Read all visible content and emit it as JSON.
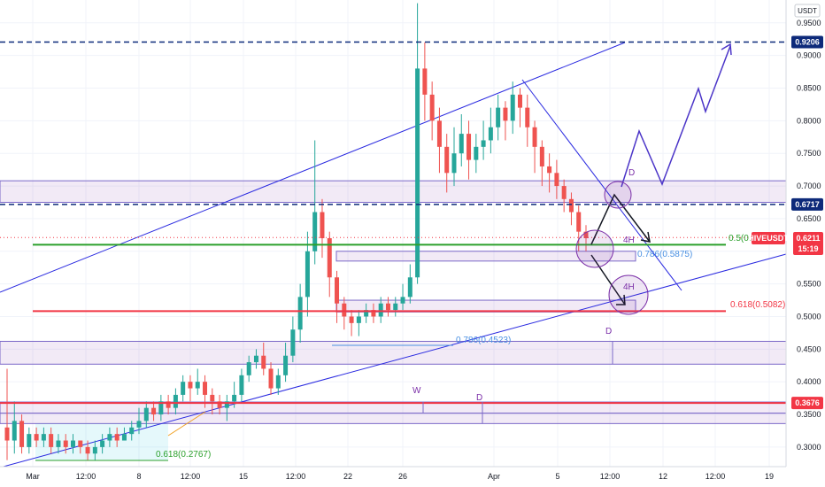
{
  "chart_data": {
    "type": "candlestick",
    "symbol": "HIVEUSDT",
    "currency_label": "USDT",
    "ylim": [
      0.27,
      0.985
    ],
    "yticks": [
      0.3,
      0.35,
      0.4,
      0.45,
      0.5,
      0.55,
      0.6,
      0.65,
      0.7,
      0.75,
      0.8,
      0.85,
      0.9,
      0.95
    ],
    "ytick_labels": [
      "0.3000",
      "0.3500",
      "0.4000",
      "0.4500",
      "0.5000",
      "0.5500",
      "0.6000",
      "0.6500",
      "0.7000",
      "0.7500",
      "0.8000",
      "0.8500",
      "0.9000",
      "0.9500"
    ],
    "x_labels": [
      "Mar",
      "12:00",
      "8",
      "12:00",
      "15",
      "12:00",
      "22",
      "26",
      "Apr",
      "5",
      "12:00",
      "12",
      "12:00",
      "19"
    ],
    "current_price": {
      "value": 0.6211,
      "label": "0.6211",
      "countdown": "15:19"
    },
    "price_tags": [
      {
        "value": 0.9206,
        "label": "0.9206",
        "color": "#0d2a7a"
      },
      {
        "value": 0.6717,
        "label": "0.6717",
        "color": "#0d2a7a"
      },
      {
        "value": 0.3676,
        "label": "0.3676",
        "color": "#f23645"
      }
    ],
    "horizontal_lines": [
      {
        "value": 0.9206,
        "style": "dashed",
        "color": "#0d2a7a"
      },
      {
        "value": 0.6717,
        "style": "dashed",
        "color": "#0d2a7a"
      },
      {
        "value": 0.6101,
        "style": "solid",
        "color": "#2ca02c"
      },
      {
        "value": 0.5082,
        "style": "solid",
        "color": "#f23645"
      },
      {
        "value": 0.3676,
        "style": "solid",
        "color": "#f23645"
      }
    ],
    "annotations": {
      "fib_50": "0.5(0.",
      "fib_618_top": "0.618(0.5082)",
      "fib_786_top": "0.786(0.5875)",
      "fib_786_mid": "0.786(0.4523)",
      "fib_618_bottom": "0.618(0.2767)",
      "marker_4h_1": "4H",
      "marker_4h_2": "4H",
      "marker_d_1": "D",
      "marker_d_2": "D",
      "marker_d_3": "D",
      "marker_w": "W"
    },
    "candles": [
      [
        0.33,
        0.31,
        0.42,
        0.28
      ],
      [
        0.31,
        0.34,
        0.37,
        0.29
      ],
      [
        0.34,
        0.3,
        0.35,
        0.29
      ],
      [
        0.3,
        0.32,
        0.33,
        0.29
      ],
      [
        0.32,
        0.31,
        0.33,
        0.3
      ],
      [
        0.31,
        0.32,
        0.33,
        0.3
      ],
      [
        0.32,
        0.3,
        0.33,
        0.29
      ],
      [
        0.3,
        0.31,
        0.32,
        0.29
      ],
      [
        0.31,
        0.3,
        0.32,
        0.29
      ],
      [
        0.3,
        0.31,
        0.32,
        0.29
      ],
      [
        0.31,
        0.3,
        0.31,
        0.29
      ],
      [
        0.3,
        0.29,
        0.31,
        0.28
      ],
      [
        0.29,
        0.3,
        0.31,
        0.28
      ],
      [
        0.3,
        0.31,
        0.32,
        0.29
      ],
      [
        0.31,
        0.32,
        0.33,
        0.3
      ],
      [
        0.32,
        0.31,
        0.33,
        0.3
      ],
      [
        0.31,
        0.32,
        0.33,
        0.31
      ],
      [
        0.32,
        0.33,
        0.34,
        0.31
      ],
      [
        0.33,
        0.34,
        0.36,
        0.32
      ],
      [
        0.34,
        0.36,
        0.37,
        0.33
      ],
      [
        0.36,
        0.35,
        0.37,
        0.34
      ],
      [
        0.35,
        0.37,
        0.38,
        0.34
      ],
      [
        0.37,
        0.36,
        0.38,
        0.35
      ],
      [
        0.36,
        0.38,
        0.39,
        0.35
      ],
      [
        0.38,
        0.4,
        0.41,
        0.37
      ],
      [
        0.4,
        0.39,
        0.41,
        0.37
      ],
      [
        0.39,
        0.4,
        0.42,
        0.38
      ],
      [
        0.4,
        0.38,
        0.41,
        0.36
      ],
      [
        0.38,
        0.37,
        0.39,
        0.35
      ],
      [
        0.37,
        0.36,
        0.38,
        0.35
      ],
      [
        0.36,
        0.37,
        0.38,
        0.34
      ],
      [
        0.37,
        0.38,
        0.4,
        0.36
      ],
      [
        0.38,
        0.41,
        0.42,
        0.37
      ],
      [
        0.41,
        0.43,
        0.44,
        0.4
      ],
      [
        0.43,
        0.44,
        0.45,
        0.42
      ],
      [
        0.44,
        0.42,
        0.46,
        0.41
      ],
      [
        0.42,
        0.39,
        0.43,
        0.38
      ],
      [
        0.39,
        0.41,
        0.42,
        0.38
      ],
      [
        0.41,
        0.44,
        0.46,
        0.4
      ],
      [
        0.44,
        0.48,
        0.5,
        0.43
      ],
      [
        0.48,
        0.53,
        0.55,
        0.46
      ],
      [
        0.53,
        0.6,
        0.63,
        0.5
      ],
      [
        0.6,
        0.66,
        0.77,
        0.58
      ],
      [
        0.66,
        0.62,
        0.68,
        0.59
      ],
      [
        0.62,
        0.56,
        0.63,
        0.53
      ],
      [
        0.56,
        0.52,
        0.57,
        0.49
      ],
      [
        0.52,
        0.5,
        0.53,
        0.48
      ],
      [
        0.5,
        0.49,
        0.51,
        0.47
      ],
      [
        0.49,
        0.5,
        0.51,
        0.47
      ],
      [
        0.5,
        0.51,
        0.52,
        0.49
      ],
      [
        0.51,
        0.5,
        0.52,
        0.49
      ],
      [
        0.5,
        0.52,
        0.53,
        0.49
      ],
      [
        0.52,
        0.51,
        0.53,
        0.5
      ],
      [
        0.51,
        0.52,
        0.53,
        0.5
      ],
      [
        0.52,
        0.53,
        0.55,
        0.51
      ],
      [
        0.53,
        0.56,
        0.58,
        0.52
      ],
      [
        0.56,
        0.88,
        0.98,
        0.55
      ],
      [
        0.88,
        0.84,
        0.92,
        0.8
      ],
      [
        0.84,
        0.8,
        0.86,
        0.77
      ],
      [
        0.8,
        0.76,
        0.82,
        0.72
      ],
      [
        0.76,
        0.72,
        0.78,
        0.69
      ],
      [
        0.72,
        0.75,
        0.79,
        0.7
      ],
      [
        0.75,
        0.78,
        0.81,
        0.73
      ],
      [
        0.78,
        0.74,
        0.8,
        0.71
      ],
      [
        0.74,
        0.76,
        0.78,
        0.72
      ],
      [
        0.76,
        0.77,
        0.8,
        0.74
      ],
      [
        0.77,
        0.79,
        0.82,
        0.75
      ],
      [
        0.79,
        0.82,
        0.84,
        0.77
      ],
      [
        0.82,
        0.8,
        0.83,
        0.77
      ],
      [
        0.8,
        0.84,
        0.86,
        0.78
      ],
      [
        0.84,
        0.82,
        0.85,
        0.79
      ],
      [
        0.82,
        0.79,
        0.84,
        0.76
      ],
      [
        0.79,
        0.76,
        0.8,
        0.72
      ],
      [
        0.76,
        0.73,
        0.77,
        0.7
      ],
      [
        0.73,
        0.72,
        0.75,
        0.69
      ],
      [
        0.72,
        0.7,
        0.74,
        0.68
      ],
      [
        0.7,
        0.68,
        0.71,
        0.66
      ],
      [
        0.68,
        0.66,
        0.69,
        0.64
      ],
      [
        0.66,
        0.63,
        0.67,
        0.6
      ],
      [
        0.63,
        0.62,
        0.64,
        0.6
      ]
    ]
  }
}
